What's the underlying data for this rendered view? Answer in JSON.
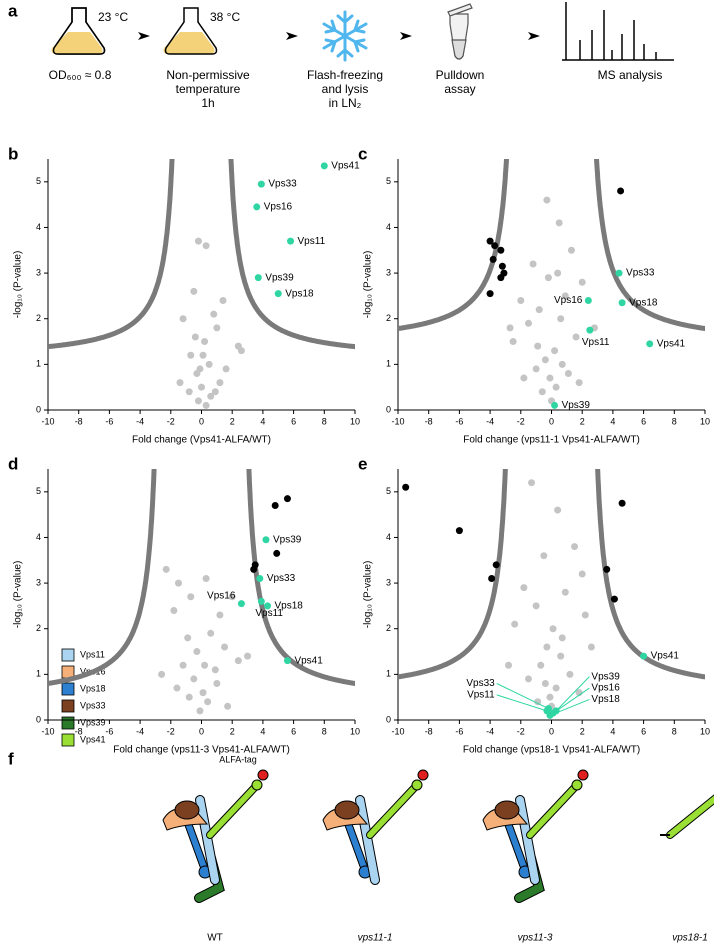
{
  "workflow": {
    "panel": "a",
    "temps": [
      "23 °C",
      "38 °C"
    ],
    "captions": [
      [
        "OD₆₀₀ ≈ 0.8"
      ],
      [
        "Non-permissive",
        "temperature",
        "1h"
      ],
      [
        "Flash-freezing",
        "and lysis",
        "in LN₂"
      ],
      [
        "Pulldown",
        "assay"
      ],
      [
        "MS analysis"
      ]
    ]
  },
  "chart_data": [
    {
      "type": "scatter",
      "panel": "b",
      "xlabel": "Fold change (Vps41-ALFA/WT)",
      "ylabel": "-log₁₀ (P-value)",
      "xlim": [
        -10,
        10
      ],
      "ylim": [
        0,
        5.5
      ],
      "xticks": [
        -10,
        -8,
        -6,
        -4,
        -2,
        0,
        2,
        4,
        6,
        8,
        10
      ],
      "yticks": [
        0,
        1,
        2,
        3,
        4,
        5
      ],
      "cutoff_curve": {
        "x0": 1.35,
        "c": 2.5,
        "y0": 1.1,
        "color": "#7a7a7a"
      },
      "series": [
        {
          "color": "#c4c4c4",
          "x": [
            -0.2,
            0.3,
            -0.5,
            1.4,
            0.8,
            -1.2,
            1.0,
            0.2,
            2.4,
            2.6,
            -0.7,
            0.5,
            -0.3,
            1.2,
            0,
            -0.8,
            0.6,
            -0.2,
            0.3,
            -1.4,
            1.6,
            0.1,
            -0.4,
            0.9,
            -0.1
          ],
          "values": [
            3.7,
            3.6,
            2.6,
            2.4,
            2.1,
            2.0,
            1.8,
            1.5,
            1.4,
            1.3,
            1.2,
            1.0,
            0.8,
            0.6,
            0.5,
            0.4,
            0.3,
            0.2,
            0.1,
            0.6,
            0.9,
            1.2,
            1.6,
            0.4,
            0.9
          ]
        },
        {
          "color": "#000000",
          "x": [],
          "values": []
        },
        {
          "color": "#2fd6a3",
          "x": [
            8.0,
            3.9,
            3.6,
            5.8,
            3.7,
            5.0
          ],
          "values": [
            5.35,
            4.95,
            4.45,
            3.7,
            2.9,
            2.55
          ],
          "labels": [
            "Vps41",
            "Vps33",
            "Vps16",
            "Vps11",
            "Vps39",
            "Vps18"
          ]
        }
      ]
    },
    {
      "type": "scatter",
      "panel": "c",
      "xlabel": "Fold change (vps11-1 Vps41-ALFA/WT)",
      "ylabel": "-log₁₀ (P-value)",
      "xlim": [
        -10,
        10
      ],
      "ylim": [
        0,
        5.5
      ],
      "xticks": [
        -10,
        -8,
        -6,
        -4,
        -2,
        0,
        2,
        4,
        6,
        8,
        10
      ],
      "yticks": [
        0,
        1,
        2,
        3,
        4,
        5
      ],
      "cutoff_curve": {
        "x0": 2.2,
        "c": 3,
        "y0": 1.4,
        "color": "#7a7a7a"
      },
      "series": [
        {
          "color": "#c4c4c4",
          "x": [
            -0.3,
            0.5,
            -1.2,
            1.3,
            -2.0,
            2.0,
            -0.8,
            0.9,
            -1.5,
            1.6,
            -2.5,
            0.2,
            -0.4,
            0.7,
            -1.0,
            1.1,
            -0.1,
            0.3,
            -0.6,
            2.8,
            -2.7,
            0.0,
            0.6,
            -0.2,
            1.8,
            -1.8,
            0.4,
            -0.9
          ],
          "values": [
            4.6,
            4.1,
            3.2,
            3.5,
            2.4,
            2.8,
            2.2,
            2.5,
            1.9,
            1.6,
            1.5,
            1.3,
            1.1,
            1.0,
            0.9,
            0.8,
            0.7,
            0.5,
            0.4,
            1.8,
            1.8,
            0.2,
            2.0,
            2.9,
            0.6,
            0.7,
            3.0,
            1.4
          ]
        },
        {
          "color": "#000000",
          "x": [
            4.5,
            -4.0,
            -3.7,
            -3.3,
            -3.8,
            -3.2,
            -3.1,
            -3.3,
            -4.0
          ],
          "values": [
            4.8,
            3.7,
            3.6,
            3.5,
            3.3,
            3.15,
            3.0,
            2.9,
            2.55
          ]
        },
        {
          "color": "#2fd6a3",
          "x": [
            4.4,
            4.6,
            2.4,
            2.5,
            6.4,
            0.2
          ],
          "values": [
            3.0,
            2.35,
            2.4,
            1.75,
            1.45,
            0.1
          ],
          "labels": [
            "Vps33",
            "Vps18",
            "Vps16",
            "Vps11",
            "Vps41",
            "Vps39"
          ]
        }
      ]
    },
    {
      "type": "scatter",
      "panel": "d",
      "xlabel": "Fold change (vps11-3 Vps41-ALFA/WT)",
      "ylabel": "-log₁₀ (P-value)",
      "xlim": [
        -10,
        10
      ],
      "ylim": [
        0,
        5.5
      ],
      "xticks": [
        -10,
        -8,
        -6,
        -4,
        -2,
        0,
        2,
        4,
        6,
        8,
        10
      ],
      "yticks": [
        0,
        1,
        2,
        3,
        4,
        5
      ],
      "cutoff_curve": {
        "x0": 2.5,
        "c": 3,
        "y0": 0.4,
        "color": "#7a7a7a"
      },
      "series": [
        {
          "color": "#c4c4c4",
          "x": [
            -2.3,
            -1.8,
            -1.5,
            -0.7,
            0.3,
            1.2,
            2.0,
            -0.9,
            0.6,
            -0.3,
            1.5,
            -1.2,
            0.9,
            -0.5,
            0.1,
            2.4,
            -2.6,
            0.4,
            -0.1,
            1.0,
            -0.8,
            3.0,
            0.2,
            -1.6,
            1.7
          ],
          "values": [
            3.3,
            2.4,
            3.0,
            2.7,
            3.1,
            2.3,
            2.7,
            1.8,
            1.9,
            1.5,
            1.6,
            1.2,
            1.1,
            0.9,
            0.6,
            1.3,
            1.0,
            0.4,
            0.2,
            0.8,
            0.5,
            1.4,
            1.2,
            0.7,
            0.3
          ]
        },
        {
          "color": "#000000",
          "x": [
            5.6,
            4.8,
            4.9,
            3.5,
            3.4
          ],
          "values": [
            4.85,
            4.7,
            3.65,
            3.4,
            3.3
          ]
        },
        {
          "color": "#2fd6a3",
          "x": [
            4.2,
            3.8,
            3.9,
            4.3,
            2.6,
            5.6
          ],
          "values": [
            3.95,
            3.1,
            2.6,
            2.5,
            2.55,
            1.3
          ],
          "labels": [
            "Vps39",
            "Vps33",
            "Vps11",
            "Vps18",
            "Vps16",
            "Vps41"
          ]
        }
      ]
    },
    {
      "type": "scatter",
      "panel": "e",
      "xlabel": "Fold change (vps18-1 Vps41-ALFA/WT)",
      "ylabel": "-log₁₀ (P-value)",
      "xlim": [
        -10,
        10
      ],
      "ylim": [
        0,
        5.5
      ],
      "xticks": [
        -10,
        -8,
        -6,
        -4,
        -2,
        0,
        2,
        4,
        6,
        8,
        10
      ],
      "yticks": [
        0,
        1,
        2,
        3,
        4,
        5
      ],
      "cutoff_curve": {
        "x0": 2.4,
        "c": 3,
        "y0": 0.55,
        "color": "#7a7a7a"
      },
      "series": [
        {
          "color": "#c4c4c4",
          "x": [
            -1.3,
            0.4,
            -0.5,
            1.5,
            -1.8,
            2.0,
            -1.0,
            0.9,
            -2.4,
            2.2,
            0.1,
            -0.3,
            0.6,
            -0.7,
            1.2,
            -1.5,
            0.3,
            -0.1,
            2.6,
            -2.8,
            1.8,
            -0.4,
            0.7,
            -0.9,
            0.0
          ],
          "values": [
            5.2,
            4.6,
            3.6,
            3.8,
            2.9,
            3.2,
            2.5,
            2.8,
            2.1,
            2.3,
            2.0,
            1.6,
            1.4,
            1.2,
            1.0,
            0.9,
            0.7,
            0.5,
            1.6,
            1.2,
            0.6,
            0.8,
            1.8,
            0.4,
            0.3
          ]
        },
        {
          "color": "#000000",
          "x": [
            -9.5,
            -6.0,
            4.6,
            -3.6,
            -3.9,
            3.6,
            4.1
          ],
          "values": [
            5.1,
            4.15,
            4.75,
            3.4,
            3.1,
            3.3,
            2.65
          ]
        },
        {
          "color": "#2fd6a3",
          "x": [
            6.0,
            0.3,
            0.1,
            -0.1,
            -0.2,
            -0.3
          ],
          "values": [
            1.4,
            0.2,
            0.15,
            0.1,
            0.25,
            0.2
          ],
          "labels": [
            "Vps41",
            "Vps39",
            "Vps16",
            "Vps18",
            "Vps33",
            "Vps11"
          ]
        }
      ]
    }
  ],
  "model": {
    "panel": "f",
    "tag": "ALFA-tag",
    "tag_color": "#e02020",
    "legend": [
      {
        "name": "Vps11",
        "color": "#aad4f0"
      },
      {
        "name": "Vps16",
        "color": "#f5b07a"
      },
      {
        "name": "Vps18",
        "color": "#2d7fd0"
      },
      {
        "name": "Vps33",
        "color": "#7a4020"
      },
      {
        "name": "Vps39",
        "color": "#2a7a2a"
      },
      {
        "name": "Vps41",
        "color": "#9ae034"
      }
    ],
    "strains": [
      "WT",
      "vps11-1",
      "vps11-3",
      "vps18-1"
    ]
  }
}
